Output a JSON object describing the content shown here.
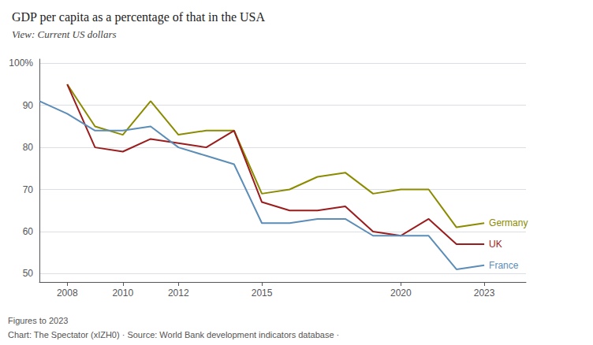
{
  "chart_data": {
    "type": "line",
    "title": "GDP per capita as a percentage of that in the USA",
    "subtitle": "View: Current US dollars",
    "x": [
      2007,
      2008,
      2009,
      2010,
      2011,
      2012,
      2013,
      2014,
      2015,
      2016,
      2017,
      2018,
      2019,
      2020,
      2021,
      2022,
      2023
    ],
    "series": [
      {
        "name": "Germany",
        "color": "#8B8B00",
        "values": [
          null,
          95,
          85,
          83,
          91,
          83,
          84,
          84,
          69,
          70,
          73,
          74,
          69,
          70,
          70,
          61,
          62
        ]
      },
      {
        "name": "UK",
        "color": "#9B1C1C",
        "values": [
          null,
          95,
          80,
          79,
          82,
          81,
          80,
          84,
          67,
          65,
          65,
          66,
          60,
          59,
          63,
          57,
          57
        ]
      },
      {
        "name": "France",
        "color": "#5B8DB8",
        "values": [
          91,
          88,
          84,
          84,
          85,
          80,
          78,
          76,
          62,
          62,
          63,
          63,
          59,
          59,
          59,
          51,
          52
        ]
      }
    ],
    "xlim": [
      2007,
      2024.5
    ],
    "xticks": [
      2008,
      2010,
      2012,
      2015,
      2020,
      2023
    ],
    "ylim": [
      48,
      101
    ],
    "yticks": [
      50,
      60,
      70,
      80,
      90,
      {
        "value": 100,
        "label": "100%"
      }
    ],
    "grid": true,
    "annotations": [
      "Figures to 2023",
      "Chart: The Spectator (xIZH0) · Source: World Bank development indicators database ·"
    ]
  }
}
